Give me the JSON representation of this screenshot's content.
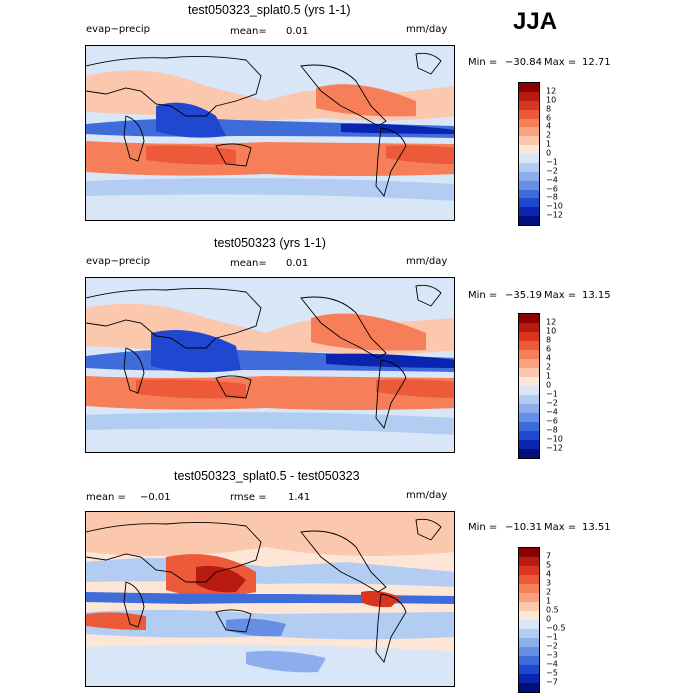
{
  "season": "JJA",
  "panels": [
    {
      "title": "test050323_splat0.5 (yrs 1-1)",
      "left_label": "evap−precip",
      "stat_label": "mean=",
      "stat_value": "0.01",
      "units": "mm/day",
      "min_label": "Min =",
      "min_value": "−30.84",
      "max_label": "Max =",
      "max_value": "12.71",
      "colorbar": {
        "colors": [
          "#8b0000",
          "#b81c10",
          "#d9351f",
          "#ec5a3a",
          "#f67f59",
          "#f9a27f",
          "#fbc7ad",
          "#fde6d6",
          "#d8e6f7",
          "#b3cdf2",
          "#8caeec",
          "#658ee4",
          "#3f6cdb",
          "#1f47cf",
          "#0b24b0",
          "#00107a"
        ],
        "labels": [
          "12",
          "10",
          "8",
          "6",
          "4",
          "2",
          "1",
          "0",
          "−1",
          "−2",
          "−4",
          "−6",
          "−8",
          "−10",
          "−12"
        ]
      }
    },
    {
      "title": "test050323 (yrs 1-1)",
      "left_label": "evap−precip",
      "stat_label": "mean=",
      "stat_value": "0.01",
      "units": "mm/day",
      "min_label": "Min =",
      "min_value": "−35.19",
      "max_label": "Max =",
      "max_value": "13.15",
      "colorbar": {
        "colors": [
          "#8b0000",
          "#b81c10",
          "#d9351f",
          "#ec5a3a",
          "#f67f59",
          "#f9a27f",
          "#fbc7ad",
          "#fde6d6",
          "#d8e6f7",
          "#b3cdf2",
          "#8caeec",
          "#658ee4",
          "#3f6cdb",
          "#1f47cf",
          "#0b24b0",
          "#00107a"
        ],
        "labels": [
          "12",
          "10",
          "8",
          "6",
          "4",
          "2",
          "1",
          "0",
          "−1",
          "−2",
          "−4",
          "−6",
          "−8",
          "−10",
          "−12"
        ]
      }
    },
    {
      "title": "test050323_splat0.5 - test050323",
      "left_label": "mean =",
      "left_value": "−0.01",
      "stat_label": "rmse =",
      "stat_value": "1.41",
      "units": "mm/day",
      "min_label": "Min =",
      "min_value": "−10.31",
      "max_label": "Max =",
      "max_value": "13.51",
      "colorbar": {
        "colors": [
          "#8b0000",
          "#b81c10",
          "#d9351f",
          "#ec5a3a",
          "#f67f59",
          "#f9a27f",
          "#fbc7ad",
          "#fde6d6",
          "#d8e6f7",
          "#b3cdf2",
          "#8caeec",
          "#658ee4",
          "#3f6cdb",
          "#1f47cf",
          "#0b24b0",
          "#00107a"
        ],
        "labels": [
          "7",
          "5",
          "4",
          "3",
          "2",
          "1",
          "0.5",
          "0",
          "−0.5",
          "−1",
          "−2",
          "−3",
          "−4",
          "−5",
          "−7"
        ]
      }
    }
  ]
}
